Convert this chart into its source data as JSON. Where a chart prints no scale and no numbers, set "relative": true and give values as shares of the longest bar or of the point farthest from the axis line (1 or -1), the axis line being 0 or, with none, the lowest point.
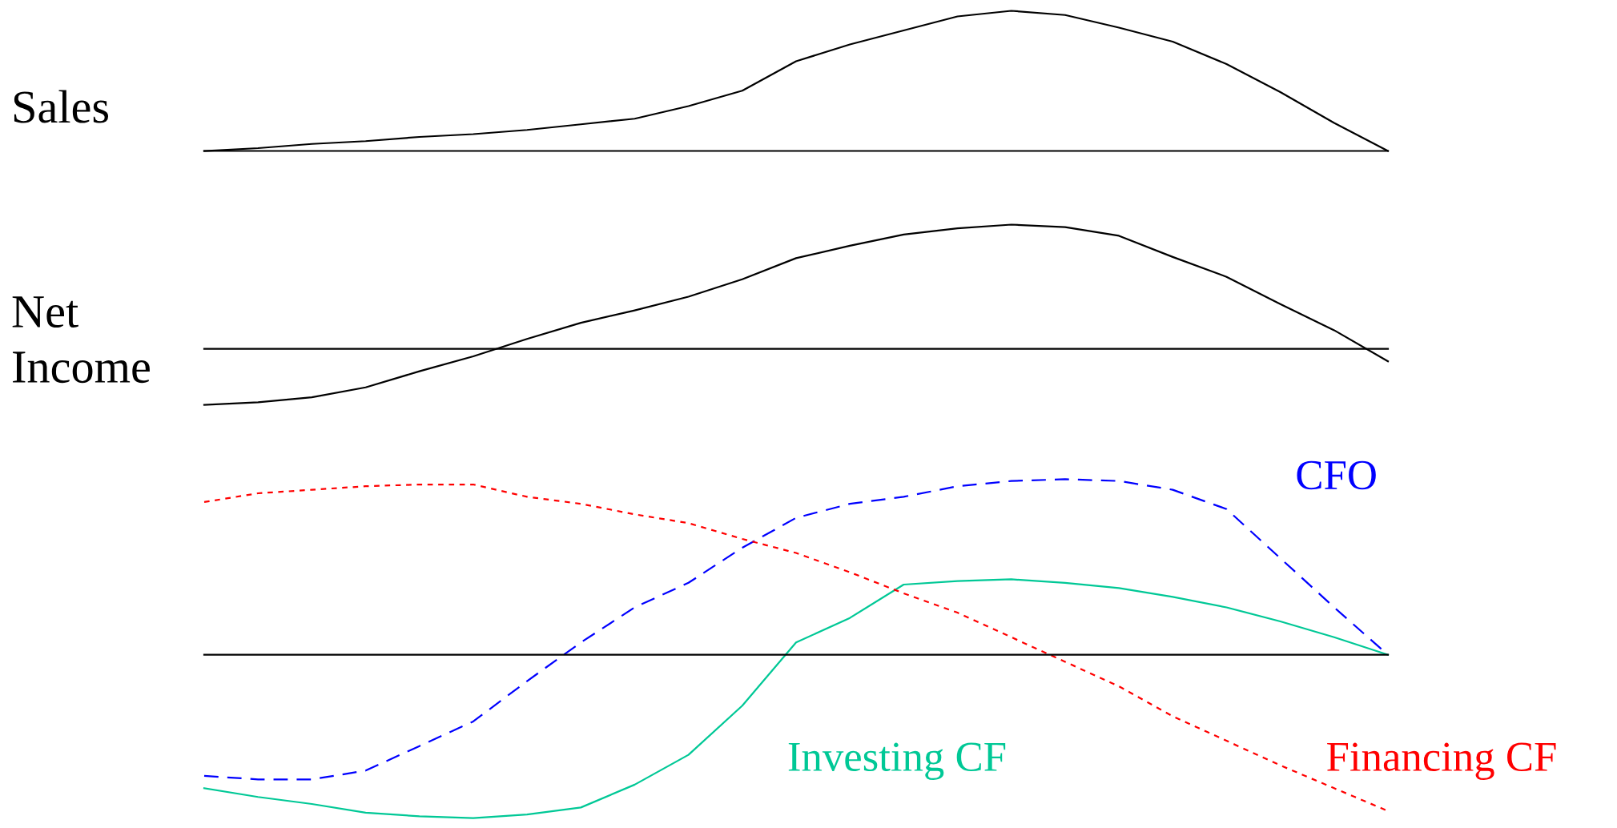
{
  "chart_data": [
    {
      "type": "line",
      "relative": true,
      "ylabel": "Sales",
      "categories": [
        null,
        null,
        null,
        null,
        null,
        null,
        null,
        null,
        null,
        null,
        null,
        null,
        null,
        null,
        null,
        null,
        null,
        null,
        null,
        null,
        null,
        null,
        null
      ],
      "series": [
        {
          "color": "#000000",
          "line_style": "solid",
          "values": [
            0,
            0.02,
            0.05,
            0.07,
            0.1,
            0.12,
            0.15,
            0.19,
            0.23,
            0.32,
            0.43,
            0.64,
            0.76,
            0.86,
            0.96,
            1.0,
            0.97,
            0.88,
            0.78,
            0.62,
            0.42,
            0.2,
            0
          ]
        }
      ]
    },
    {
      "type": "line",
      "relative": true,
      "ylabel": "Net\nIncome",
      "categories": [
        null,
        null,
        null,
        null,
        null,
        null,
        null,
        null,
        null,
        null,
        null,
        null,
        null,
        null,
        null,
        null,
        null,
        null,
        null,
        null,
        null,
        null,
        null
      ],
      "series": [
        {
          "color": "#000000",
          "line_style": "solid",
          "values": [
            -0.45,
            -0.43,
            -0.39,
            -0.31,
            -0.18,
            -0.06,
            0.08,
            0.21,
            0.31,
            0.42,
            0.56,
            0.73,
            0.83,
            0.92,
            0.97,
            1.0,
            0.98,
            0.91,
            0.74,
            0.58,
            0.36,
            0.15,
            -0.1
          ]
        }
      ]
    },
    {
      "type": "line",
      "relative": true,
      "categories": [
        null,
        null,
        null,
        null,
        null,
        null,
        null,
        null,
        null,
        null,
        null,
        null,
        null,
        null,
        null,
        null,
        null,
        null,
        null,
        null,
        null,
        null,
        null
      ],
      "series": [
        {
          "name": "CFO",
          "color": "#0000ff",
          "line_style": "dashed",
          "values": [
            -0.69,
            -0.71,
            -0.71,
            -0.66,
            -0.52,
            -0.38,
            -0.15,
            0.07,
            0.27,
            0.41,
            0.61,
            0.78,
            0.86,
            0.9,
            0.96,
            0.99,
            1.0,
            0.99,
            0.94,
            0.83,
            0.55,
            0.27,
            0
          ]
        },
        {
          "name": "Investing CF",
          "color": "#00c896",
          "line_style": "solid",
          "values": [
            -0.76,
            -0.81,
            -0.85,
            -0.9,
            -0.92,
            -0.93,
            -0.91,
            -0.87,
            -0.74,
            -0.57,
            -0.29,
            0.07,
            0.21,
            0.4,
            0.42,
            0.43,
            0.41,
            0.38,
            0.33,
            0.27,
            0.19,
            0.1,
            0
          ]
        },
        {
          "name": "Financing CF",
          "color": "#ff0000",
          "line_style": "dotted",
          "values": [
            0.87,
            0.92,
            0.94,
            0.96,
            0.97,
            0.97,
            0.9,
            0.86,
            0.8,
            0.75,
            0.66,
            0.58,
            0.47,
            0.35,
            0.24,
            0.1,
            -0.04,
            -0.18,
            -0.35,
            -0.49,
            -0.63,
            -0.76,
            -0.89
          ]
        }
      ]
    }
  ]
}
